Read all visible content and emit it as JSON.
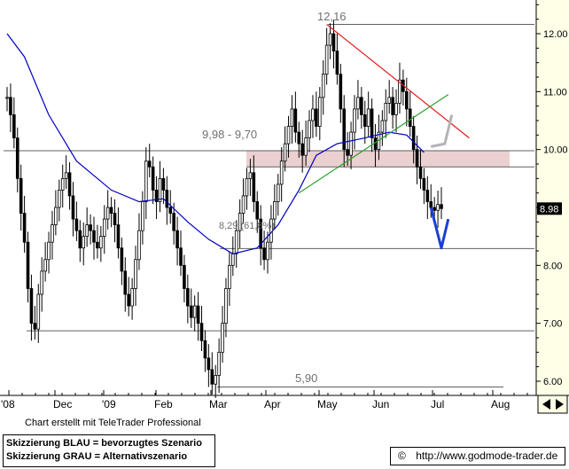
{
  "chart_data": {
    "type": "candlestick",
    "title": "",
    "xlabel": "",
    "ylabel": "",
    "ylim": [
      5.9,
      12.3
    ],
    "y_ticks": [
      "12.00",
      "11.00",
      "10.00",
      "9.00",
      "8.00",
      "7.00",
      "6.00"
    ],
    "x_ticks": [
      "'08",
      "Dec",
      "'09",
      "Feb",
      "Mar",
      "Apr",
      "May",
      "Jun",
      "Jul",
      "Aug"
    ],
    "last_price_label": "8.98",
    "annotations": {
      "high_label": "12,16",
      "low_label": "5,90",
      "zone_label": "9,98 - 9,70",
      "fib_label": "8,29 (61,8%)"
    },
    "horizontal_levels": [
      12.16,
      9.98,
      9.7,
      8.29,
      6.87,
      5.9
    ],
    "resistance_zone": [
      9.7,
      9.98
    ],
    "closes": [
      10.9,
      10.6,
      10.2,
      9.5,
      8.9,
      8.4,
      7.6,
      7.0,
      6.9,
      7.5,
      7.9,
      8.1,
      8.4,
      8.7,
      9.0,
      9.3,
      9.5,
      9.6,
      9.2,
      8.8,
      8.6,
      8.3,
      8.5,
      8.7,
      8.6,
      8.4,
      8.3,
      8.5,
      8.8,
      9.0,
      8.9,
      8.7,
      8.3,
      7.9,
      7.5,
      7.3,
      7.6,
      8.1,
      8.6,
      9.1,
      9.8,
      9.7,
      9.3,
      9.1,
      9.5,
      9.3,
      9.0,
      8.9,
      8.6,
      8.3,
      8.0,
      7.6,
      7.3,
      7.1,
      7.3,
      7.0,
      6.7,
      6.4,
      6.2,
      5.95,
      6.1,
      6.5,
      7.0,
      7.6,
      8.0,
      8.2,
      8.6,
      8.9,
      9.2,
      9.5,
      9.6,
      9.1,
      8.8,
      8.3,
      8.1,
      8.4,
      8.8,
      9.1,
      9.4,
      9.8,
      10.1,
      10.4,
      10.7,
      10.3,
      10.1,
      9.9,
      10.2,
      10.5,
      10.7,
      10.4,
      10.9,
      11.3,
      11.8,
      12.0,
      11.7,
      11.3,
      10.7,
      10.0,
      9.9,
      10.3,
      10.7,
      10.9,
      10.6,
      10.4,
      10.7,
      10.2,
      10.0,
      10.3,
      10.5,
      10.8,
      10.9,
      10.6,
      10.8,
      11.2,
      11.0,
      10.7,
      10.4,
      10.0,
      9.7,
      9.5,
      9.3,
      9.1,
      9.0,
      8.95,
      9.05,
      8.98
    ],
    "moving_average": [
      [
        0,
        12.0
      ],
      [
        5,
        11.6
      ],
      [
        12,
        10.6
      ],
      [
        20,
        9.8
      ],
      [
        30,
        9.3
      ],
      [
        38,
        9.1
      ],
      [
        45,
        9.15
      ],
      [
        52,
        8.75
      ],
      [
        58,
        8.45
      ],
      [
        65,
        8.2
      ],
      [
        72,
        8.3
      ],
      [
        78,
        8.7
      ],
      [
        84,
        9.3
      ],
      [
        89,
        9.9
      ],
      [
        95,
        10.1
      ],
      [
        103,
        10.2
      ],
      [
        110,
        10.3
      ],
      [
        115,
        10.25
      ],
      [
        120,
        9.95
      ]
    ],
    "trendlines": [
      {
        "name": "resistance",
        "color": "#e01b1b",
        "from": [
          92,
          12.16
        ],
        "to": [
          133,
          10.2
        ]
      },
      {
        "name": "support",
        "color": "#2aa02a",
        "from": [
          84,
          9.25
        ],
        "to": [
          127,
          10.95
        ]
      }
    ],
    "scenario_blue": [
      [
        122,
        9.0
      ],
      [
        125,
        8.3
      ],
      [
        127,
        8.8
      ]
    ],
    "scenario_grey": [
      [
        122,
        10.05
      ],
      [
        126,
        10.1
      ],
      [
        128,
        10.6
      ]
    ],
    "series_colors": {
      "price": "#000000",
      "moving_average": "#0000c0",
      "scenario_blue": "#1a3fd6",
      "scenario_grey": "#b4b4b4",
      "zone": "#e8c8c8"
    }
  },
  "footer": {
    "credit": "Chart erstellt mit TeleTrader Professional",
    "note_blue": "Skizzierung BLAU = bevorzugtes Szenario",
    "note_grey": "Skizzierung GRAU = Alternativszenario",
    "copyright_symbol": "©",
    "copyright_url": "http://www.godmode-trader.de"
  }
}
